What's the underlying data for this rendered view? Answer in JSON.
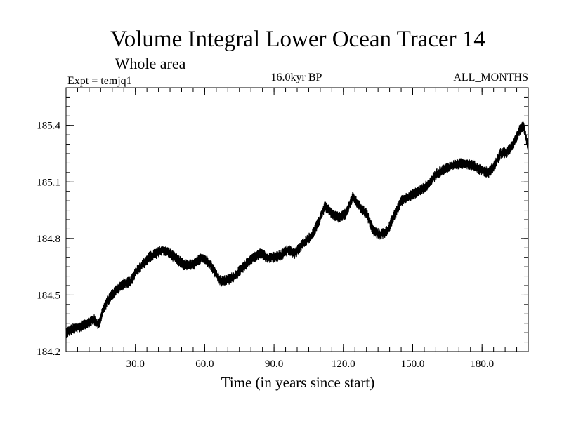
{
  "chart_data": {
    "type": "line",
    "title": "Volume Integral Lower Ocean Tracer 14",
    "subtitle": "Whole area",
    "expt_label": "Expt = temjq1",
    "period_label": "16.0kyr BP",
    "months_label": "ALL_MONTHS",
    "xlabel": "Time (in years since start)",
    "ylabel": "",
    "xlim": [
      0,
      200
    ],
    "ylim": [
      184.2,
      185.6
    ],
    "x_ticks": [
      30,
      60,
      90,
      120,
      150,
      180
    ],
    "x_tick_labels": [
      "30.0",
      "60.0",
      "90.0",
      "120.0",
      "150.0",
      "180.0"
    ],
    "y_ticks": [
      184.2,
      184.5,
      184.8,
      185.1,
      185.4
    ],
    "y_tick_labels": [
      "184.2",
      "184.5",
      "184.8",
      "185.1",
      "185.4"
    ],
    "y_minor_step": 0.05,
    "x_minor_step": 5,
    "noise_amplitude": 0.028,
    "series": [
      {
        "name": "Volume Integral Lower Ocean Tracer 14",
        "x": [
          0,
          3,
          6,
          9,
          12,
          14,
          16,
          19,
          22,
          25,
          28,
          30,
          33,
          36,
          39,
          42,
          45,
          48,
          51,
          55,
          59,
          62,
          65,
          67,
          70,
          73,
          76,
          80,
          84,
          87,
          90,
          93,
          96,
          99,
          103,
          106,
          109,
          112,
          115,
          118,
          121,
          124,
          127,
          130,
          133,
          136,
          139,
          142,
          145,
          148,
          151,
          154,
          157,
          160,
          164,
          168,
          172,
          176,
          180,
          183,
          186,
          188,
          191,
          194,
          196,
          198,
          200
        ],
        "values": [
          184.3,
          184.32,
          184.33,
          184.35,
          184.37,
          184.34,
          184.42,
          184.49,
          184.53,
          184.56,
          184.57,
          184.62,
          184.66,
          184.7,
          184.72,
          184.74,
          184.72,
          184.69,
          184.66,
          184.66,
          184.7,
          184.67,
          184.61,
          184.57,
          184.58,
          184.6,
          184.64,
          184.69,
          184.72,
          184.7,
          184.7,
          184.71,
          184.74,
          184.72,
          184.78,
          184.81,
          184.88,
          184.97,
          184.93,
          184.91,
          184.93,
          185.02,
          184.97,
          184.93,
          184.84,
          184.82,
          184.84,
          184.92,
          185.0,
          185.02,
          185.04,
          185.06,
          185.09,
          185.14,
          185.17,
          185.19,
          185.2,
          185.19,
          185.16,
          185.15,
          185.2,
          185.25,
          185.26,
          185.31,
          185.37,
          185.4,
          185.28
        ]
      }
    ]
  }
}
